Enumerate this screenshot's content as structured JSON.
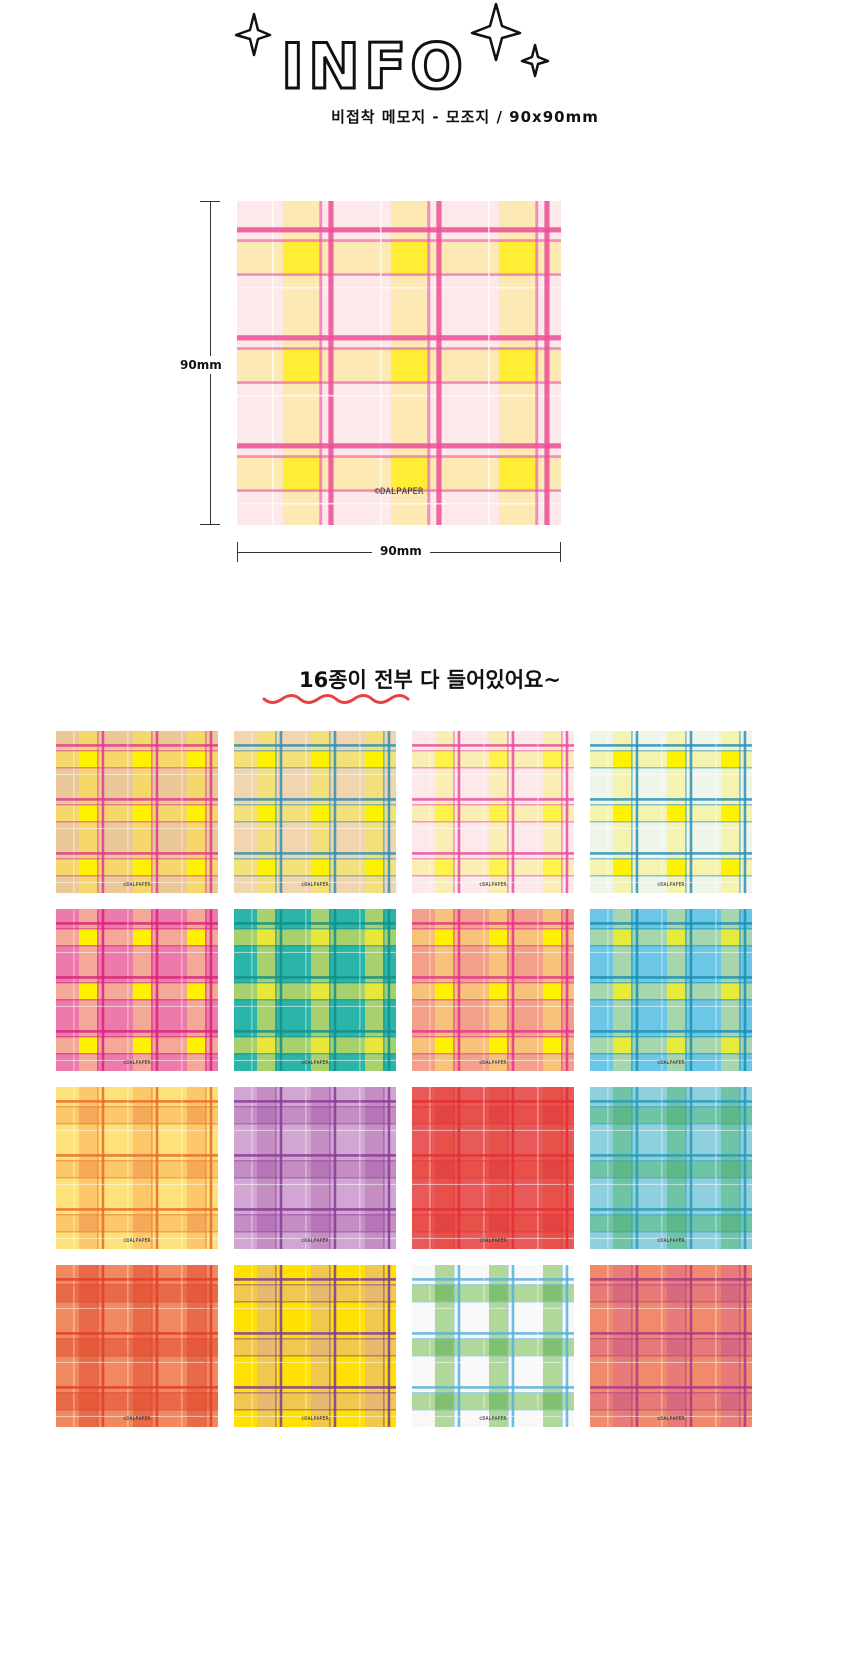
{
  "header": {
    "logo_text": "INFO",
    "subtitle": "비접착 메모지 - 모조지 / 90x90mm"
  },
  "main_product": {
    "watermark": "©DALPAPER",
    "height_label": "90mm",
    "width_label": "90mm",
    "colors": {
      "bg": "#fde8ea",
      "band": "#fde9b4",
      "cross": "#ffee33",
      "line": "#ec4d97"
    }
  },
  "variants_section": {
    "heading": "16종이 전부 다 들어있어요~",
    "underline_color": "#e8413f"
  },
  "variants": [
    {
      "watermark": "©DALPAPER",
      "colors": {
        "bg": "#ebc898",
        "band": "#f6d86a",
        "cross": "#fff200",
        "line": "#e2378f"
      }
    },
    {
      "watermark": "©DALPAPER",
      "colors": {
        "bg": "#f0d5ae",
        "band": "#f3e07a",
        "cross": "#fff200",
        "line": "#2f8fb5"
      }
    },
    {
      "watermark": "©DALPAPER",
      "colors": {
        "bg": "#fde8ea",
        "band": "#fbeeb5",
        "cross": "#fff34a",
        "line": "#ea4c9b"
      }
    },
    {
      "watermark": "©DALPAPER",
      "colors": {
        "bg": "#eef6ea",
        "band": "#f4f4b0",
        "cross": "#fff200",
        "line": "#2a8fb8"
      }
    },
    {
      "watermark": "©DALPAPER",
      "colors": {
        "bg": "#ec7aaa",
        "band": "#f4a898",
        "cross": "#fff200",
        "line": "#d9237a"
      }
    },
    {
      "watermark": "©DALPAPER",
      "colors": {
        "bg": "#2ab5a8",
        "band": "#a8d16e",
        "cross": "#e8e63a",
        "line": "#138f8a"
      }
    },
    {
      "watermark": "©DALPAPER",
      "colors": {
        "bg": "#f3a08a",
        "band": "#f7c27a",
        "cross": "#fff200",
        "line": "#e3338a"
      }
    },
    {
      "watermark": "©DALPAPER",
      "colors": {
        "bg": "#6cc7e6",
        "band": "#a6d5ae",
        "cross": "#e6ea3a",
        "line": "#1a8fb0"
      }
    },
    {
      "watermark": "©DALPAPER",
      "colors": {
        "bg": "#fde27a",
        "band": "#fcc86a",
        "cross": "#f7a95a",
        "line": "#ea6a2a"
      }
    },
    {
      "watermark": "©DALPAPER",
      "colors": {
        "bg": "#d2a6d2",
        "band": "#c48ec2",
        "cross": "#b575b6",
        "line": "#8a3a96"
      }
    },
    {
      "watermark": "©DALPAPER",
      "colors": {
        "bg": "#e85a5a",
        "band": "#e8504a",
        "cross": "#e24444",
        "line": "#e23030"
      }
    },
    {
      "watermark": "©DALPAPER",
      "colors": {
        "bg": "#8fd0de",
        "band": "#6ec4a4",
        "cross": "#5eb88a",
        "line": "#2a9ab8"
      }
    },
    {
      "watermark": "©DALPAPER",
      "colors": {
        "bg": "#f08860",
        "band": "#e86a48",
        "cross": "#e45a3a",
        "line": "#e0402a"
      }
    },
    {
      "watermark": "©DALPAPER",
      "colors": {
        "bg": "#ffe000",
        "band": "#f0c850",
        "cross": "#e6b870",
        "line": "#7a3aa0"
      }
    },
    {
      "watermark": "©DALPAPER",
      "colors": {
        "bg": "#f8f8f8",
        "band": "#b0d89a",
        "cross": "#80c070",
        "line": "#58b0d8"
      }
    },
    {
      "watermark": "©DALPAPER",
      "colors": {
        "bg": "#f08a6a",
        "band": "#e87a7a",
        "cross": "#d86a80",
        "line": "#a8388a"
      }
    }
  ]
}
